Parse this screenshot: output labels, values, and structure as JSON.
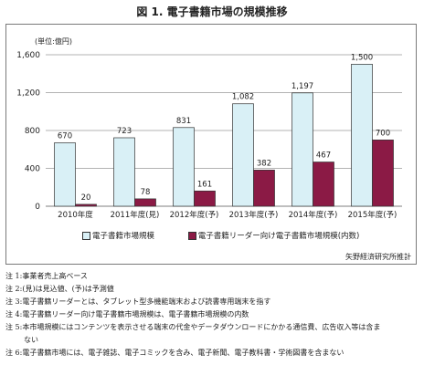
{
  "title": "図 1.  電子書籍市場の規模推移",
  "unit": "(単位:億円)",
  "source": "矢野経済研究所推計",
  "legend": [
    {
      "label": "電子書籍市場規模",
      "color": "#d9f0f6"
    },
    {
      "label": "電子書籍リーダー向け電子書籍市場規模(内数)",
      "color": "#8b1a45"
    }
  ],
  "notes": [
    "注 1:事業者売上高ベース",
    "注 2:(見)は見込値、(予)は予測値",
    "注 3:電子書籍リーダーとは、タブレット型多機能端末および読書専用端末を指す",
    "注 4:電子書籍リーダー向け電子書籍市場規模は、電子書籍市場規模の内数",
    "注 5:本市場規模にはコンテンツを表示させる端末の代金やデータダウンロードにかかる通信費、広告収入等は含ま",
    "ない",
    "注 6:電子書籍市場には、電子雑誌、電子コミックを含み、電子新聞、電子教科書・学術図書を含まない"
  ],
  "chart_data": {
    "type": "bar",
    "categories": [
      "2010年度",
      "2011年度(見)",
      "2012年度(予)",
      "2013年度(予)",
      "2014年度(予)",
      "2015年度(予)"
    ],
    "series": [
      {
        "name": "電子書籍市場規模",
        "values": [
          670,
          723,
          831,
          1082,
          1197,
          1500
        ],
        "labels": [
          "670",
          "723",
          "831",
          "1,082",
          "1,197",
          "1,500"
        ],
        "color": "#d9f0f6"
      },
      {
        "name": "電子書籍リーダー向け電子書籍市場規模(内数)",
        "values": [
          20,
          78,
          161,
          382,
          467,
          700
        ],
        "labels": [
          "20",
          "78",
          "161",
          "382",
          "467",
          "700"
        ],
        "color": "#8b1a45"
      }
    ],
    "ylabel": "(単位:億円)",
    "ylim": [
      0,
      1600
    ],
    "yticks": [
      0,
      400,
      800,
      1200,
      1600
    ],
    "ytick_labels": [
      "0",
      "400",
      "800",
      "1,200",
      "1,600"
    ],
    "grid": true,
    "legend": "bottom"
  }
}
